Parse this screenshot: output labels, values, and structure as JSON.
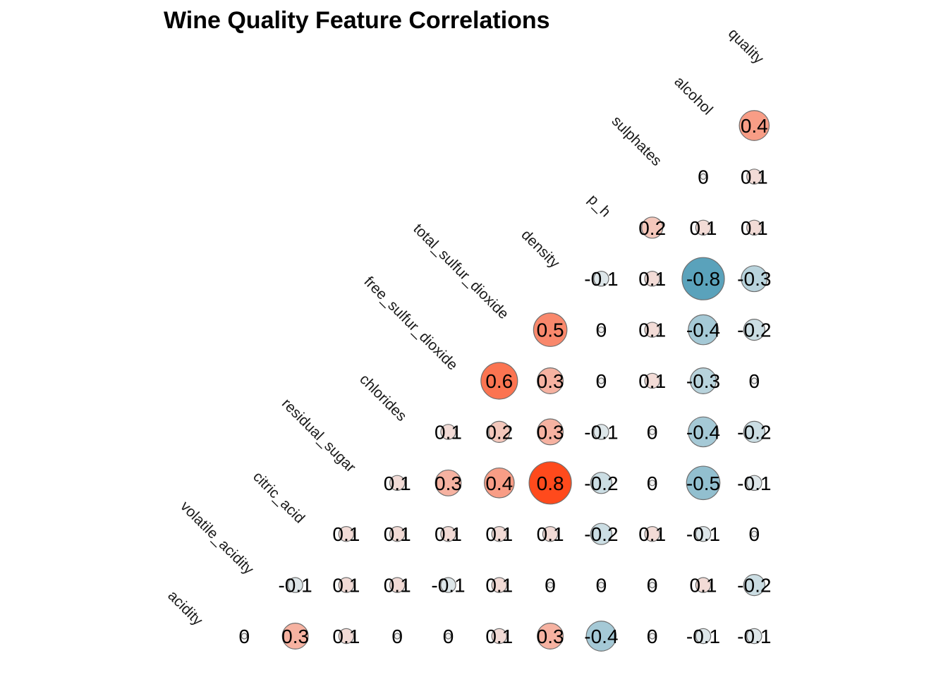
{
  "chart_data": {
    "type": "heatmap",
    "title": "Wine Quality Feature Correlations",
    "variables": [
      "acidity",
      "volatile_acidity",
      "citric_acid",
      "residual_sugar",
      "chlorides",
      "free_sulfur_dioxide",
      "total_sulfur_dioxide",
      "density",
      "p_h",
      "sulphates",
      "alcohol",
      "quality"
    ],
    "color_scale": {
      "negative": "#5aa2bb",
      "zero": "#f0f0f0",
      "positive": "#ff4a1c"
    },
    "cells": [
      {
        "row": "acidity",
        "col": "volatile_acidity",
        "value": 0,
        "label": "0"
      },
      {
        "row": "acidity",
        "col": "citric_acid",
        "value": 0.3,
        "label": "0.3"
      },
      {
        "row": "acidity",
        "col": "residual_sugar",
        "value": 0.1,
        "label": "0.1"
      },
      {
        "row": "acidity",
        "col": "chlorides",
        "value": 0,
        "label": "0"
      },
      {
        "row": "acidity",
        "col": "free_sulfur_dioxide",
        "value": 0,
        "label": "0"
      },
      {
        "row": "acidity",
        "col": "total_sulfur_dioxide",
        "value": 0.1,
        "label": "0.1"
      },
      {
        "row": "acidity",
        "col": "density",
        "value": 0.3,
        "label": "0.3"
      },
      {
        "row": "acidity",
        "col": "p_h",
        "value": -0.4,
        "label": "-0.4"
      },
      {
        "row": "acidity",
        "col": "sulphates",
        "value": 0,
        "label": "0"
      },
      {
        "row": "acidity",
        "col": "alcohol",
        "value": -0.1,
        "label": "-0.1"
      },
      {
        "row": "acidity",
        "col": "quality",
        "value": -0.1,
        "label": "-0.1"
      },
      {
        "row": "volatile_acidity",
        "col": "citric_acid",
        "value": -0.1,
        "label": "-0.1"
      },
      {
        "row": "volatile_acidity",
        "col": "residual_sugar",
        "value": 0.1,
        "label": "0.1"
      },
      {
        "row": "volatile_acidity",
        "col": "chlorides",
        "value": 0.1,
        "label": "0.1"
      },
      {
        "row": "volatile_acidity",
        "col": "free_sulfur_dioxide",
        "value": -0.1,
        "label": "-0.1"
      },
      {
        "row": "volatile_acidity",
        "col": "total_sulfur_dioxide",
        "value": 0.1,
        "label": "0.1"
      },
      {
        "row": "volatile_acidity",
        "col": "density",
        "value": 0,
        "label": "0"
      },
      {
        "row": "volatile_acidity",
        "col": "p_h",
        "value": 0,
        "label": "0"
      },
      {
        "row": "volatile_acidity",
        "col": "sulphates",
        "value": 0,
        "label": "0"
      },
      {
        "row": "volatile_acidity",
        "col": "alcohol",
        "value": 0.1,
        "label": "0.1"
      },
      {
        "row": "volatile_acidity",
        "col": "quality",
        "value": -0.2,
        "label": "-0.2"
      },
      {
        "row": "citric_acid",
        "col": "residual_sugar",
        "value": 0.1,
        "label": "0.1"
      },
      {
        "row": "citric_acid",
        "col": "chlorides",
        "value": 0.1,
        "label": "0.1"
      },
      {
        "row": "citric_acid",
        "col": "free_sulfur_dioxide",
        "value": 0.1,
        "label": "0.1"
      },
      {
        "row": "citric_acid",
        "col": "total_sulfur_dioxide",
        "value": 0.1,
        "label": "0.1"
      },
      {
        "row": "citric_acid",
        "col": "density",
        "value": 0.1,
        "label": "0.1"
      },
      {
        "row": "citric_acid",
        "col": "p_h",
        "value": -0.2,
        "label": "-0.2"
      },
      {
        "row": "citric_acid",
        "col": "sulphates",
        "value": 0.1,
        "label": "0.1"
      },
      {
        "row": "citric_acid",
        "col": "alcohol",
        "value": -0.1,
        "label": "-0.1"
      },
      {
        "row": "citric_acid",
        "col": "quality",
        "value": 0,
        "label": "0"
      },
      {
        "row": "residual_sugar",
        "col": "chlorides",
        "value": 0.1,
        "label": "0.1"
      },
      {
        "row": "residual_sugar",
        "col": "free_sulfur_dioxide",
        "value": 0.3,
        "label": "0.3"
      },
      {
        "row": "residual_sugar",
        "col": "total_sulfur_dioxide",
        "value": 0.4,
        "label": "0.4"
      },
      {
        "row": "residual_sugar",
        "col": "density",
        "value": 0.8,
        "label": "0.8"
      },
      {
        "row": "residual_sugar",
        "col": "p_h",
        "value": -0.2,
        "label": "-0.2"
      },
      {
        "row": "residual_sugar",
        "col": "sulphates",
        "value": 0,
        "label": "0"
      },
      {
        "row": "residual_sugar",
        "col": "alcohol",
        "value": -0.5,
        "label": "-0.5"
      },
      {
        "row": "residual_sugar",
        "col": "quality",
        "value": -0.1,
        "label": "-0.1"
      },
      {
        "row": "chlorides",
        "col": "free_sulfur_dioxide",
        "value": 0.1,
        "label": "0.1"
      },
      {
        "row": "chlorides",
        "col": "total_sulfur_dioxide",
        "value": 0.2,
        "label": "0.2"
      },
      {
        "row": "chlorides",
        "col": "density",
        "value": 0.3,
        "label": "0.3"
      },
      {
        "row": "chlorides",
        "col": "p_h",
        "value": -0.1,
        "label": "-0.1"
      },
      {
        "row": "chlorides",
        "col": "sulphates",
        "value": 0,
        "label": "0"
      },
      {
        "row": "chlorides",
        "col": "alcohol",
        "value": -0.4,
        "label": "-0.4"
      },
      {
        "row": "chlorides",
        "col": "quality",
        "value": -0.2,
        "label": "-0.2"
      },
      {
        "row": "free_sulfur_dioxide",
        "col": "total_sulfur_dioxide",
        "value": 0.6,
        "label": "0.6"
      },
      {
        "row": "free_sulfur_dioxide",
        "col": "density",
        "value": 0.3,
        "label": "0.3"
      },
      {
        "row": "free_sulfur_dioxide",
        "col": "p_h",
        "value": 0,
        "label": "0"
      },
      {
        "row": "free_sulfur_dioxide",
        "col": "sulphates",
        "value": 0.1,
        "label": "0.1"
      },
      {
        "row": "free_sulfur_dioxide",
        "col": "alcohol",
        "value": -0.3,
        "label": "-0.3"
      },
      {
        "row": "free_sulfur_dioxide",
        "col": "quality",
        "value": 0,
        "label": "0"
      },
      {
        "row": "total_sulfur_dioxide",
        "col": "density",
        "value": 0.5,
        "label": "0.5"
      },
      {
        "row": "total_sulfur_dioxide",
        "col": "p_h",
        "value": 0,
        "label": "0"
      },
      {
        "row": "total_sulfur_dioxide",
        "col": "sulphates",
        "value": 0.1,
        "label": "0.1"
      },
      {
        "row": "total_sulfur_dioxide",
        "col": "alcohol",
        "value": -0.4,
        "label": "-0.4"
      },
      {
        "row": "total_sulfur_dioxide",
        "col": "quality",
        "value": -0.2,
        "label": "-0.2"
      },
      {
        "row": "density",
        "col": "p_h",
        "value": -0.1,
        "label": "-0.1"
      },
      {
        "row": "density",
        "col": "sulphates",
        "value": 0.1,
        "label": "0.1"
      },
      {
        "row": "density",
        "col": "alcohol",
        "value": -0.8,
        "label": "-0.8"
      },
      {
        "row": "density",
        "col": "quality",
        "value": -0.3,
        "label": "-0.3"
      },
      {
        "row": "p_h",
        "col": "sulphates",
        "value": 0.2,
        "label": "0.2"
      },
      {
        "row": "p_h",
        "col": "alcohol",
        "value": 0.1,
        "label": "0.1"
      },
      {
        "row": "p_h",
        "col": "quality",
        "value": 0.1,
        "label": "0.1"
      },
      {
        "row": "sulphates",
        "col": "alcohol",
        "value": 0,
        "label": "0"
      },
      {
        "row": "sulphates",
        "col": "quality",
        "value": 0.1,
        "label": "0.1"
      },
      {
        "row": "alcohol",
        "col": "quality",
        "value": 0.4,
        "label": "0.4"
      }
    ]
  }
}
